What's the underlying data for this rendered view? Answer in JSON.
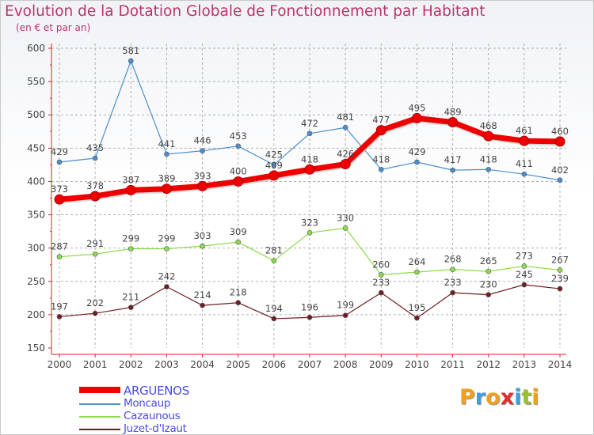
{
  "title": "Evolution de la Dotation Globale de Fonctionnement par Habitant",
  "subtitle": "(en € et par an)",
  "logo": {
    "text": "Proxiti",
    "colors": [
      "#f0a020",
      "#3aa0e0",
      "#f0a020",
      "#e03030",
      "#3aa0e0",
      "#9ac030",
      "#f0a020"
    ]
  },
  "colors": {
    "title": "#b8356a",
    "legend_text": "#4a4ae0",
    "axis": "#e02020",
    "grid": "#b0b0b0",
    "label": "#444444"
  },
  "chart_data": {
    "type": "line",
    "title": "Evolution de la Dotation Globale de Fonctionnement par Habitant",
    "subtitle": "(en € et par an)",
    "x": [
      "2000",
      "2001",
      "2002",
      "2003",
      "2004",
      "2005",
      "2006",
      "2007",
      "2008",
      "2009",
      "2010",
      "2011",
      "2012",
      "2013",
      "2014"
    ],
    "ylim": [
      150,
      600
    ],
    "yticks": [
      150,
      200,
      250,
      300,
      350,
      400,
      450,
      500,
      550,
      600
    ],
    "grid": "horizontal dashed",
    "legend_position": "bottom-left",
    "series": [
      {
        "name": "ARGUENOS",
        "color": "#ee0000",
        "width": 7,
        "values": [
          373,
          378,
          387,
          389,
          393,
          400,
          409,
          418,
          426,
          477,
          495,
          489,
          468,
          461,
          460
        ]
      },
      {
        "name": "Moncaup",
        "color": "#4a8fce",
        "width": 1.2,
        "values": [
          429,
          435,
          581,
          441,
          446,
          453,
          425,
          472,
          481,
          418,
          429,
          417,
          418,
          411,
          402
        ]
      },
      {
        "name": "Cazaunous",
        "color": "#8cdc4c",
        "width": 1.2,
        "values": [
          287,
          291,
          299,
          299,
          303,
          309,
          281,
          323,
          330,
          260,
          264,
          268,
          265,
          273,
          267
        ]
      },
      {
        "name": "Juzet-d'Izaut",
        "color": "#6e1e20",
        "width": 1.2,
        "values": [
          197,
          202,
          211,
          242,
          214,
          218,
          194,
          196,
          199,
          233,
          195,
          233,
          230,
          245,
          239
        ]
      }
    ]
  }
}
